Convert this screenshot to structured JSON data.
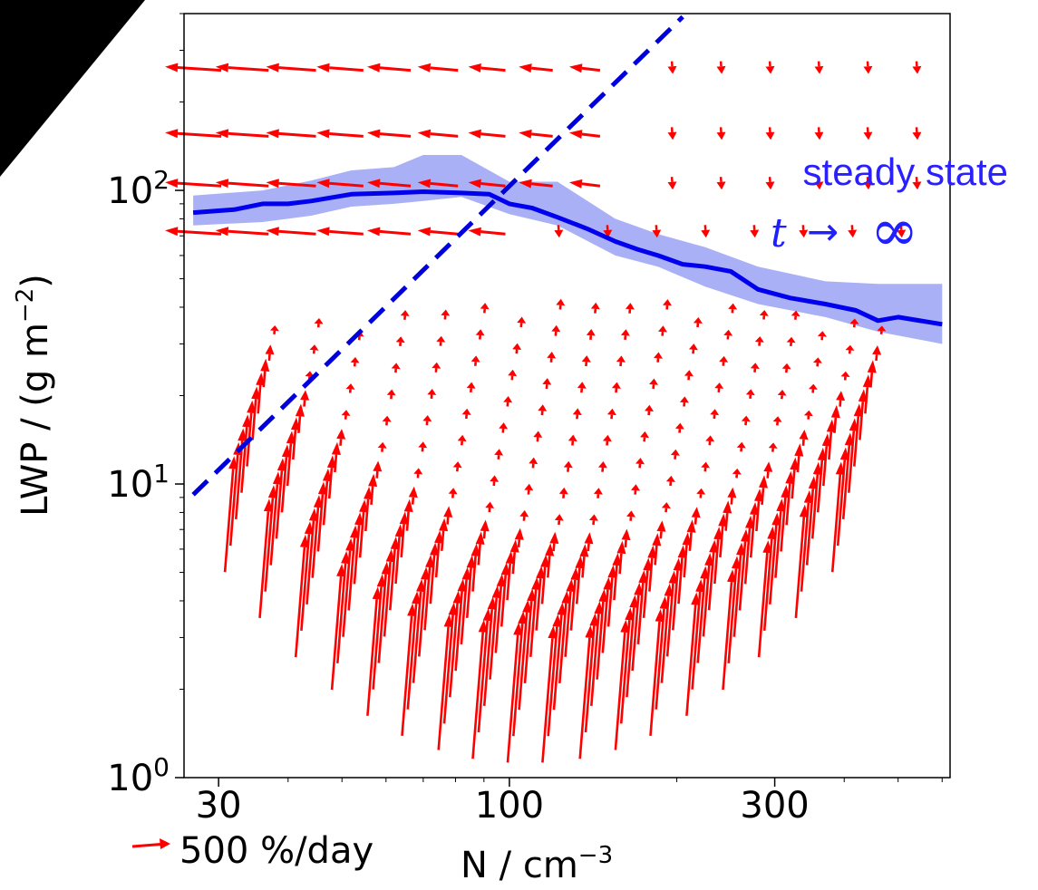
{
  "chart_data": {
    "type": "line",
    "xlabel": "N / cm",
    "xlabel_sup": "−3",
    "ylabel": "LWP / (g m",
    "ylabel_sup": "−2",
    "ylabel_end": ")",
    "x_scale": "log",
    "y_scale": "log",
    "xlim": [
      26,
      620
    ],
    "ylim": [
      1,
      400
    ],
    "x_ticks": [
      {
        "value": 30,
        "label": "30"
      },
      {
        "value": 100,
        "label": "100"
      },
      {
        "value": 300,
        "label": "300"
      }
    ],
    "y_ticks": [
      {
        "value": 1,
        "base": "10",
        "exp": "0"
      },
      {
        "value": 10,
        "base": "10",
        "exp": "1"
      },
      {
        "value": 100,
        "base": "10",
        "exp": "2"
      }
    ],
    "grid": false,
    "series": [
      {
        "kind": "median-line",
        "color": "#0000ee",
        "x": [
          27,
          32,
          36,
          40,
          44,
          52,
          62,
          70,
          82,
          92,
          100,
          110,
          122,
          138,
          155,
          170,
          185,
          205,
          225,
          250,
          280,
          320,
          370,
          420,
          460,
          500,
          600
        ],
        "y": [
          84,
          86,
          90,
          90,
          92,
          97,
          98,
          99,
          98,
          97,
          90,
          87,
          81,
          74,
          67,
          63,
          60,
          56,
          55,
          53,
          46,
          43,
          41,
          39,
          36,
          37,
          35
        ]
      },
      {
        "kind": "shaded-band",
        "color": "#aab0f5",
        "x": [
          27,
          36,
          44,
          52,
          62,
          70,
          82,
          100,
          122,
          155,
          185,
          225,
          280,
          370,
          460,
          600
        ],
        "y_low": [
          76,
          78,
          82,
          88,
          90,
          92,
          95,
          83,
          76,
          60,
          55,
          47,
          41,
          37,
          33,
          30
        ],
        "y_high": [
          96,
          100,
          108,
          117,
          120,
          132,
          132,
          107,
          107,
          80,
          71,
          64,
          55,
          49,
          48,
          48
        ]
      },
      {
        "kind": "dashed-line",
        "color": "#0000dd",
        "x": [
          27,
          205
        ],
        "y": [
          9.2,
          390
        ]
      }
    ],
    "vector_field": {
      "color": "#ff0000",
      "description_scale": "500 %/day",
      "scale_arrow_percent_per_day": 500,
      "rows_upper": [
        {
          "y": 260,
          "x_from": 27,
          "x_to": 160,
          "direction": "left"
        },
        {
          "y": 155,
          "x_from": 27,
          "x_to": 160,
          "direction": "left"
        },
        {
          "y": 105,
          "x_from": 27,
          "x_to": 160,
          "direction": "left"
        },
        {
          "y": 72,
          "x_from": 27,
          "x_to": 100,
          "direction": "left"
        }
      ],
      "columns_lower": [
        32,
        37,
        43,
        50,
        58,
        67,
        78,
        90,
        104,
        120,
        140,
        162,
        187,
        217,
        252,
        292,
        340,
        395
      ]
    },
    "annotations": {
      "steady_state": "steady state",
      "limit_t": "t",
      "limit_arrow": "→",
      "limit_inf": "∞"
    }
  }
}
